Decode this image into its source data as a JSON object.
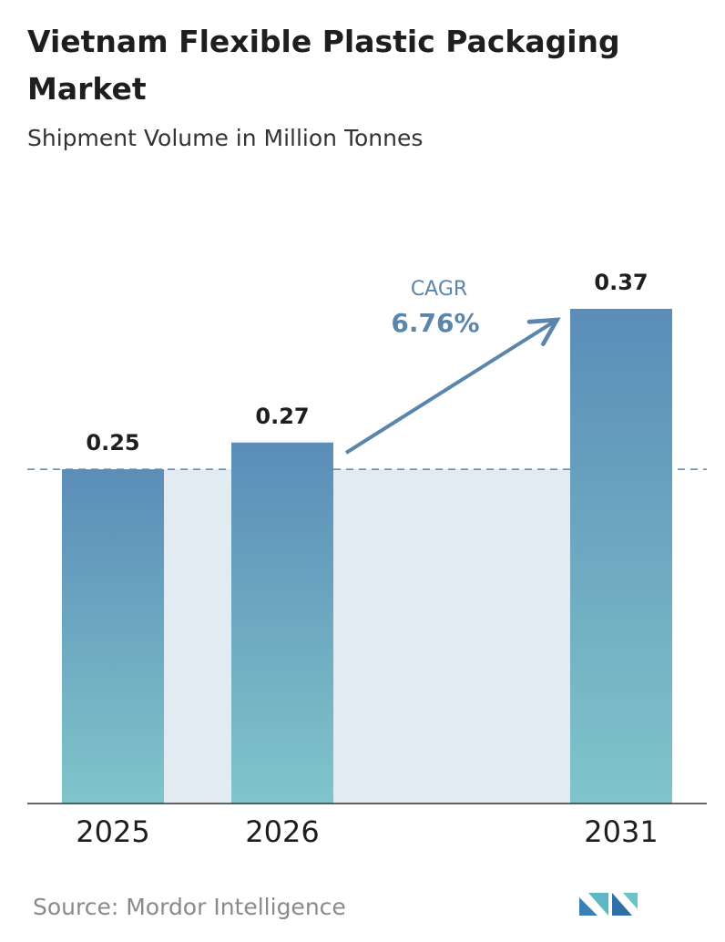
{
  "chart_data": {
    "type": "bar",
    "title": "Vietnam Flexible Plastic Packaging Market",
    "subtitle": "Shipment Volume in Million Tonnes",
    "categories": [
      "2025",
      "2026",
      "2031"
    ],
    "values": [
      0.25,
      0.27,
      0.37
    ],
    "color": "#5b8db8",
    "annotation": {
      "label": "CAGR",
      "value": "6.76%"
    },
    "source": "Source:  Mordor Intelligence"
  }
}
